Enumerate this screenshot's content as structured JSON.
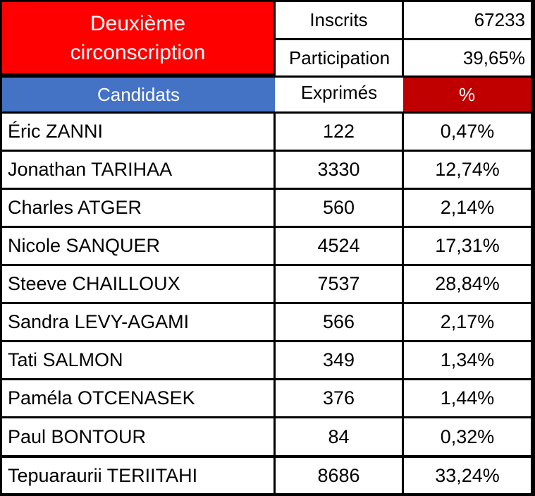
{
  "header": {
    "title_line1": "Deuxième",
    "title_line2": "circonscription",
    "inscrits_label": "Inscrits",
    "inscrits_value": "67233",
    "participation_label": "Participation",
    "participation_value": "39,65%"
  },
  "columns": {
    "candidats": "Candidats",
    "exprimes": "Exprimés",
    "percent": "%"
  },
  "colors": {
    "title_bg": "#ff0000",
    "candidats_bg": "#4472c4",
    "percent_bg": "#c00000"
  },
  "rows": [
    {
      "name": "Éric ZANNI",
      "votes": "122",
      "pct": "0,47%"
    },
    {
      "name": "Jonathan TARIHAA",
      "votes": "3330",
      "pct": "12,74%"
    },
    {
      "name": "Charles ATGER",
      "votes": "560",
      "pct": "2,14%"
    },
    {
      "name": "Nicole SANQUER",
      "votes": "4524",
      "pct": "17,31%"
    },
    {
      "name": "Steeve CHAILLOUX",
      "votes": "7537",
      "pct": "28,84%"
    },
    {
      "name": "Sandra LEVY-AGAMI",
      "votes": "566",
      "pct": "2,17%"
    },
    {
      "name": "Tati SALMON",
      "votes": "349",
      "pct": "1,34%"
    },
    {
      "name": "Paméla OTCENASEK",
      "votes": "376",
      "pct": "1,44%"
    },
    {
      "name": "Paul BONTOUR",
      "votes": "84",
      "pct": "0,32%"
    },
    {
      "name": "Tepuaraurii TERIITAHI",
      "votes": "8686",
      "pct": "33,24%"
    }
  ]
}
